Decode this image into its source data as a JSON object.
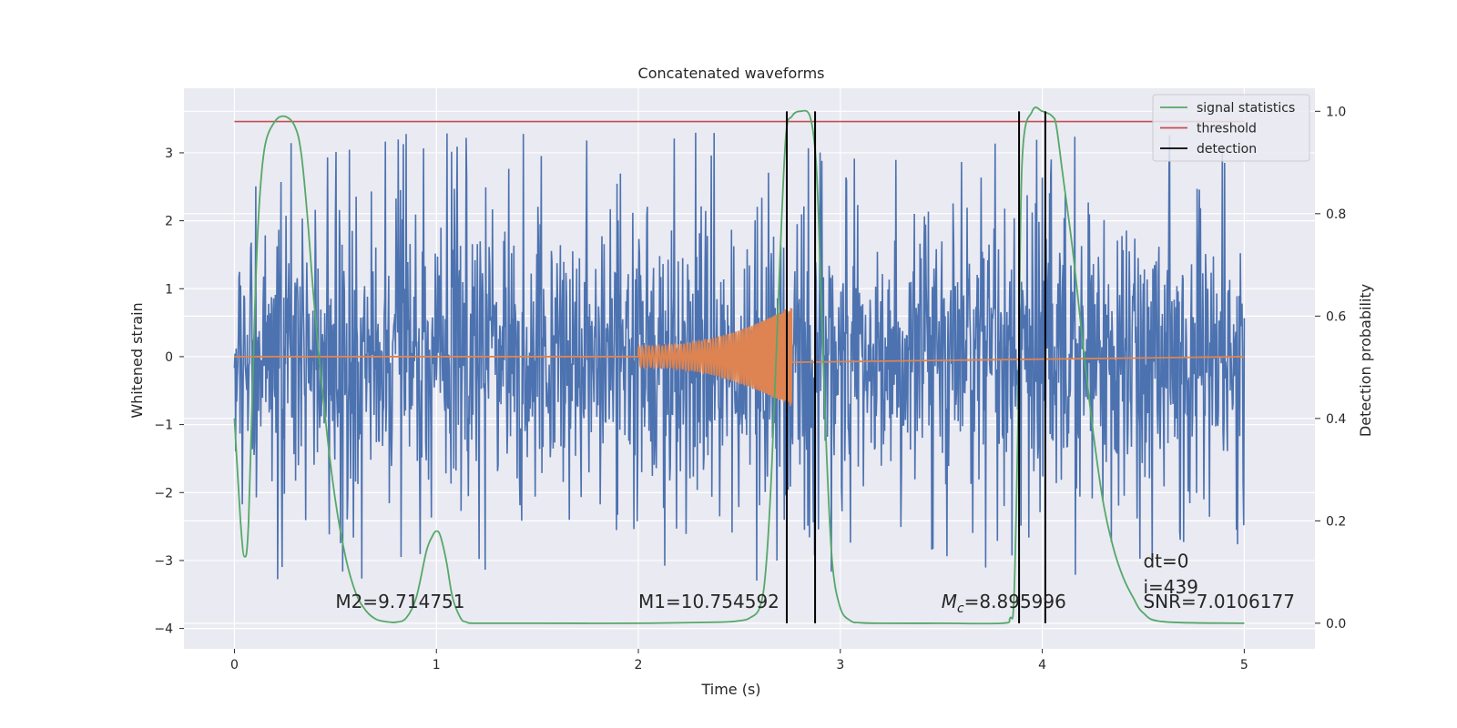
{
  "chart_data": {
    "type": "line",
    "title": "Concatenated waveforms",
    "xlabel": "Time (s)",
    "ylabel": "Whitened strain",
    "y2label": "Detection probability",
    "xlim": [
      -0.25,
      5.35
    ],
    "ylim": [
      -4.3,
      3.95
    ],
    "y2lim": [
      -0.05,
      1.045
    ],
    "x_ticks": [
      0,
      1,
      2,
      3,
      4,
      5
    ],
    "y_ticks": [
      -4,
      -3,
      -2,
      -1,
      0,
      1,
      2,
      3
    ],
    "y2_ticks": [
      0.0,
      0.2,
      0.4,
      0.6,
      0.8,
      1.0
    ],
    "x_tick_labels": [
      "0",
      "1",
      "2",
      "3",
      "4",
      "5"
    ],
    "y_tick_labels": [
      "−4",
      "−3",
      "−2",
      "−1",
      "0",
      "1",
      "2",
      "3"
    ],
    "y2_tick_labels": [
      "0.0",
      "0.2",
      "0.4",
      "0.6",
      "0.8",
      "1.0"
    ],
    "grid": true,
    "legend_position": "top-right",
    "colors": {
      "background": "#eaeaf2",
      "grid": "#ffffff",
      "strain": "#4c72b0",
      "template": "#dd8452",
      "signal_statistics": "#55a868",
      "threshold": "#c44e52",
      "detection": "#000000"
    },
    "series": [
      {
        "name": "signal statistics",
        "axis": "right",
        "x": [
          0,
          0.03,
          0.05,
          0.07,
          0.1,
          0.12,
          0.15,
          0.2,
          0.25,
          0.3,
          0.33,
          0.36,
          0.4,
          0.45,
          0.5,
          0.55,
          0.6,
          0.65,
          0.7,
          0.75,
          0.8,
          0.85,
          0.9,
          0.95,
          0.98,
          1.0,
          1.02,
          1.05,
          1.08,
          1.12,
          1.15,
          1.2,
          1.5,
          2.0,
          2.4,
          2.5,
          2.55,
          2.6,
          2.63,
          2.66,
          2.7,
          2.73,
          2.76,
          2.8,
          2.85,
          2.88,
          2.9,
          2.93,
          2.96,
          3.0,
          3.05,
          3.1,
          3.2,
          3.5,
          3.8,
          3.84,
          3.86,
          3.88,
          3.9,
          3.95,
          4.0,
          4.05,
          4.07,
          4.1,
          4.15,
          4.2,
          4.25,
          4.3,
          4.35,
          4.4,
          4.45,
          4.5,
          4.6,
          5.0
        ],
        "y": [
          0.4,
          0.2,
          0.13,
          0.2,
          0.6,
          0.8,
          0.93,
          0.98,
          0.99,
          0.97,
          0.92,
          0.8,
          0.6,
          0.4,
          0.24,
          0.13,
          0.06,
          0.025,
          0.008,
          0.003,
          0.002,
          0.01,
          0.05,
          0.14,
          0.17,
          0.18,
          0.17,
          0.12,
          0.05,
          0.01,
          0.002,
          0.0,
          0.0,
          0.0,
          0.002,
          0.005,
          0.01,
          0.03,
          0.1,
          0.3,
          0.7,
          0.95,
          0.99,
          1.0,
          0.99,
          0.9,
          0.7,
          0.35,
          0.12,
          0.03,
          0.005,
          0.001,
          0.0,
          0.0,
          0.0,
          0.01,
          0.05,
          0.4,
          0.9,
          1.0,
          1.0,
          0.99,
          0.97,
          0.88,
          0.73,
          0.55,
          0.38,
          0.24,
          0.15,
          0.09,
          0.05,
          0.02,
          0.003,
          0.0
        ]
      },
      {
        "name": "threshold",
        "axis": "right",
        "x": [
          0,
          5
        ],
        "y": [
          0.98,
          0.98
        ]
      },
      {
        "name": "detection",
        "axis": "right",
        "vlines": [
          2.735,
          2.875,
          3.885,
          4.015
        ],
        "y": [
          0,
          1
        ]
      },
      {
        "axis": "left",
        "kind": "noise",
        "x_range": [
          0,
          5
        ],
        "envelope": 2.2,
        "peak_range": [
          -3.8,
          3.3
        ]
      },
      {
        "axis": "left",
        "kind": "chirp",
        "x_range": [
          2.0,
          2.76
        ],
        "amplitude_start": 0.15,
        "amplitude_end": 0.75
      }
    ],
    "annotations": [
      {
        "text": "M2=9.714751",
        "x": 0.5,
        "y": -3.7
      },
      {
        "text": "M1=10.754592",
        "x": 2.0,
        "y": -3.7
      },
      {
        "text": "=8.895996",
        "math_prefix": "M",
        "math_sub": "c",
        "x": 3.5,
        "y": -3.7
      },
      {
        "text": "dt=0",
        "x": 4.5,
        "y": -3.1
      },
      {
        "text": "i=439",
        "x": 4.5,
        "y": -3.48
      },
      {
        "text": "SNR=7.0106177",
        "x": 4.5,
        "y": -3.7
      }
    ]
  }
}
